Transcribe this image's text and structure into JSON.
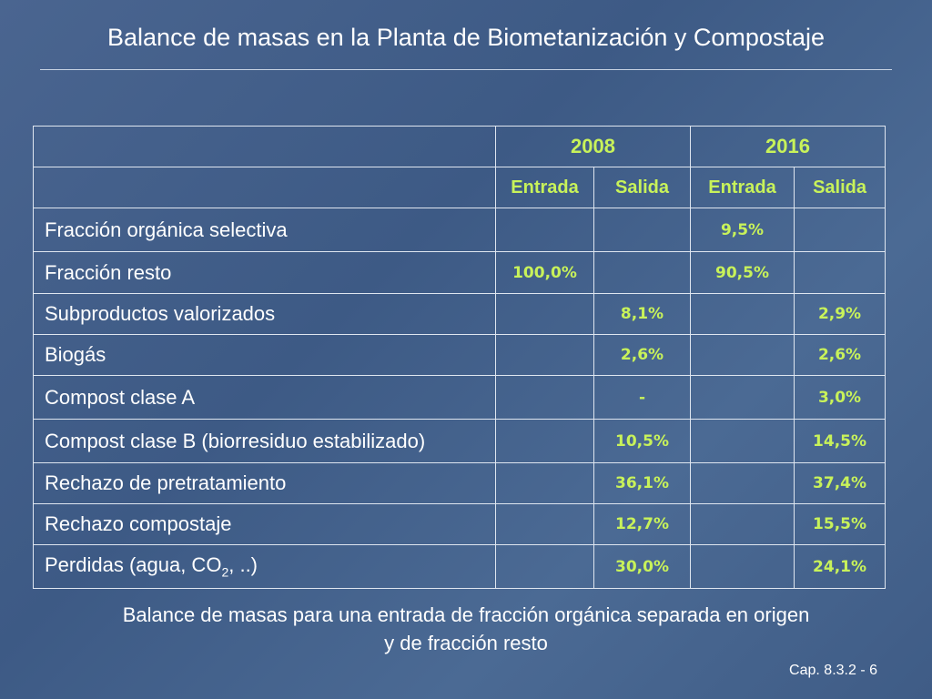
{
  "title": "Balance de masas en la Planta de Biometanización y Compostaje",
  "table": {
    "years": [
      "2008",
      "2016"
    ],
    "subheaders": [
      "Entrada",
      "Salida",
      "Entrada",
      "Salida"
    ],
    "rows": [
      {
        "label": "Fracción orgánica selectiva",
        "e2008": "",
        "s2008": "",
        "e2016": "9,5%",
        "s2016": ""
      },
      {
        "label": "Fracción resto",
        "e2008": "100,0%",
        "s2008": "",
        "e2016": "90,5%",
        "s2016": ""
      },
      {
        "label": "Subproductos valorizados",
        "e2008": "",
        "s2008": "8,1%",
        "e2016": "",
        "s2016": "2,9%"
      },
      {
        "label": "Biogás",
        "e2008": "",
        "s2008": "2,6%",
        "e2016": "",
        "s2016": "2,6%"
      },
      {
        "label": "Compost clase A",
        "e2008": "",
        "s2008": "-",
        "e2016": "",
        "s2016": "3,0%"
      },
      {
        "label": "Compost clase B (biorresiduo estabilizado)",
        "e2008": "",
        "s2008": "10,5%",
        "e2016": "",
        "s2016": "14,5%"
      },
      {
        "label": "Rechazo de pretratamiento",
        "e2008": "",
        "s2008": "36,1%",
        "e2016": "",
        "s2016": "37,4%"
      },
      {
        "label": "Rechazo compostaje",
        "e2008": "",
        "s2008": "12,7%",
        "e2016": "",
        "s2016": "15,5%"
      },
      {
        "label_pre": "Perdidas (agua, CO",
        "label_sub": "2",
        "label_post": ", ..)",
        "e2008": "",
        "s2008": "30,0%",
        "e2016": "",
        "s2016": "24,1%"
      }
    ]
  },
  "caption_line1": "Balance de masas para una entrada de fracción orgánica separada en origen",
  "caption_line2": "y de fracción resto",
  "footer": "Cap. 8.3.2 - 6",
  "colors": {
    "background": "#42608b",
    "value_text": "#c8f25a",
    "border": "#dfe6f0"
  }
}
